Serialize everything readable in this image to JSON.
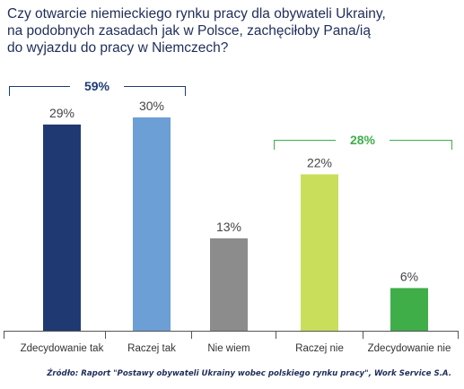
{
  "chart_data": {
    "type": "bar",
    "title": "Czy otwarcie niemieckiego rynku pracy dla obywateli Ukrainy,\nna podobnych zasadach jak w Polsce, zachęciłoby Pana/ią\ndo wyjazdu do pracy w Niemczech?",
    "categories": [
      "Zdecydowanie tak",
      "Raczej tak",
      "Nie wiem",
      "Raczej nie",
      "Zdecydowanie nie"
    ],
    "values": [
      29,
      30,
      13,
      22,
      6
    ],
    "value_labels": [
      "29%",
      "30%",
      "13%",
      "22%",
      "6%"
    ],
    "colors": [
      "#1f3a73",
      "#6b9fd6",
      "#8c8c8c",
      "#c9df5c",
      "#3fae49"
    ],
    "ylim": [
      0,
      30
    ],
    "groups": [
      {
        "label": "59%",
        "from": 0,
        "to": 1,
        "color": "#1f3a73"
      },
      {
        "label": "28%",
        "from": 3,
        "to": 4,
        "color": "#3fae49"
      }
    ],
    "source": "Źródło: Raport \"Postawy obywateli Ukrainy wobec polskiego rynku pracy\", Work Service S.A."
  }
}
